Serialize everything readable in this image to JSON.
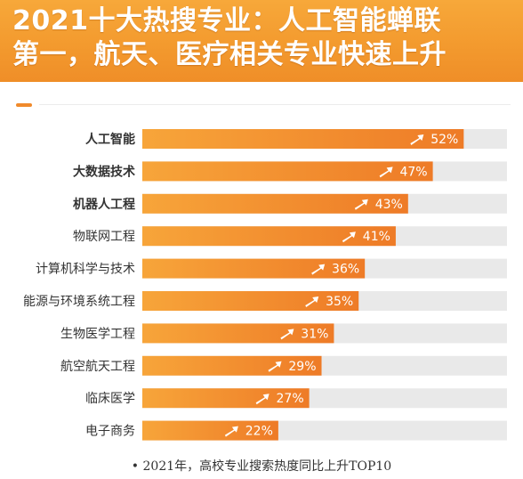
{
  "header": {
    "title_line1": "2021十大热搜专业：人工智能蝉联",
    "title_line2": "第一，航天、医疗相关专业快速上升"
  },
  "footnote": "• 2021年，高校专业搜索热度同比上升TOP10",
  "colors": {
    "header_bg": "#f39a2e",
    "bar_start": "#f7a53a",
    "bar_end": "#ee7b27",
    "track": "#e9e9e9",
    "label_text": "#333333"
  },
  "chart_data": {
    "type": "bar",
    "orientation": "horizontal",
    "categories": [
      "人工智能",
      "大数据技术",
      "机器人工程",
      "物联网工程",
      "计算机科学与技术",
      "能源与环境系统工程",
      "生物医学工程",
      "航空航天工程",
      "临床医学",
      "电子商务"
    ],
    "values": [
      52,
      47,
      43,
      41,
      36,
      35,
      31,
      29,
      27,
      22
    ],
    "value_labels": [
      "52%",
      "47%",
      "43%",
      "41%",
      "36%",
      "35%",
      "31%",
      "29%",
      "27%",
      "22%"
    ],
    "bold_categories": [
      0,
      1,
      2
    ],
    "title": "",
    "xlabel": "",
    "ylabel": "",
    "xlim": [
      0,
      59
    ],
    "grid": false,
    "legend": "none"
  }
}
